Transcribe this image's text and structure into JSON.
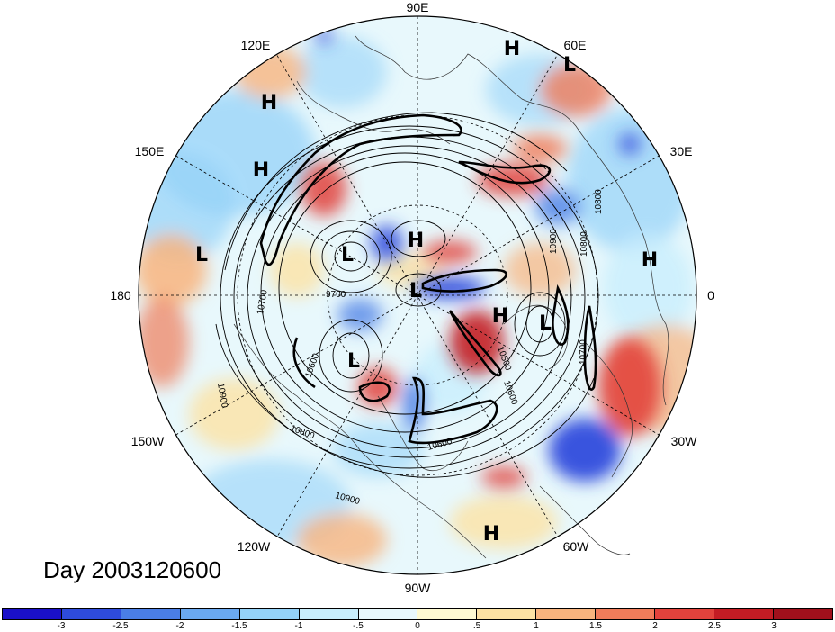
{
  "title": "Day 2003120600",
  "longitude_labels": [
    "90E",
    "60E",
    "30E",
    "0",
    "30W",
    "60W",
    "90W",
    "120W",
    "150W",
    "180",
    "150E",
    "120E"
  ],
  "pressure_systems": [
    "H",
    "L",
    "H",
    "H",
    "L",
    "H",
    "L",
    "L",
    "H",
    "L",
    "H",
    "L",
    "L",
    "H"
  ],
  "contour_labels": [
    "10800",
    "10800",
    "10900",
    "10700",
    "9700",
    "10900",
    "10800",
    "10600",
    "10900",
    "10700",
    "10600",
    "10600",
    "10500"
  ],
  "colorbar": {
    "colors": [
      "#1a10c8",
      "#2e4bdc",
      "#4a7ee6",
      "#6aa8f0",
      "#94d2f8",
      "#c8eefc",
      "#e8f8fc",
      "#fefad2",
      "#fce2a4",
      "#f8b47e",
      "#f07c5a",
      "#e2423c",
      "#c41c24",
      "#a0101c"
    ],
    "ticks": [
      "-3",
      "-2.5",
      "-2",
      "-1.5",
      "-1",
      "-.5",
      "0",
      ".5",
      "1",
      "1.5",
      "2",
      "2.5",
      "3"
    ]
  }
}
